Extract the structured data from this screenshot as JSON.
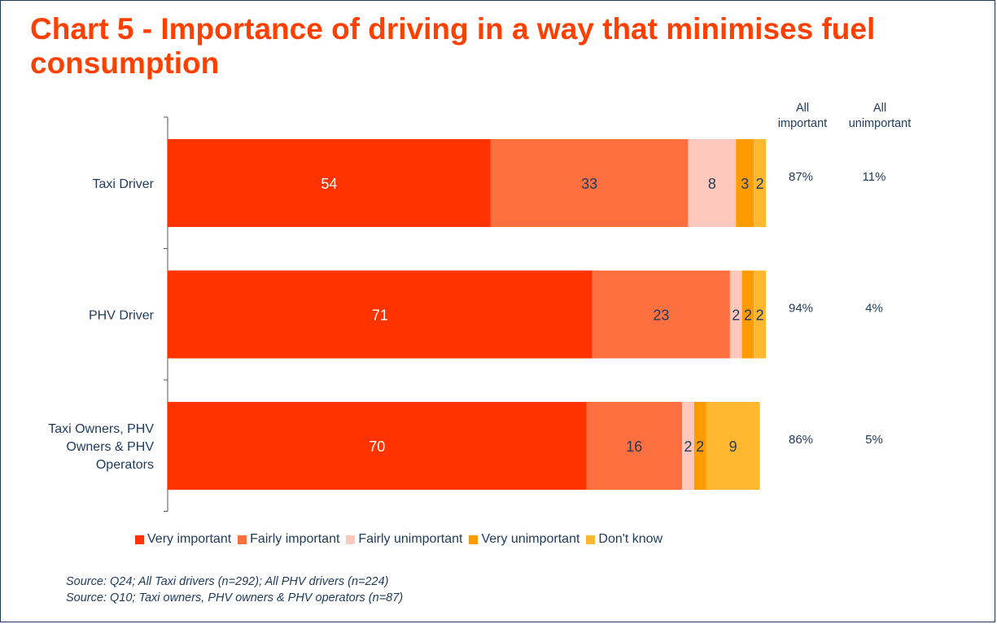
{
  "title": "Chart 5 - Importance of driving in a way that minimises fuel consumption",
  "chart_data": {
    "type": "bar",
    "orientation": "horizontal",
    "stacked": true,
    "categories": [
      "Taxi Driver",
      "PHV Driver",
      "Taxi Owners, PHV Owners & PHV Operators"
    ],
    "series": [
      {
        "name": "Very important",
        "values": [
          54,
          71,
          70
        ],
        "color": "#ff3300"
      },
      {
        "name": "Fairly important",
        "values": [
          33,
          23,
          16
        ],
        "color": "#ff7040"
      },
      {
        "name": "Fairly unimportant",
        "values": [
          8,
          2,
          2
        ],
        "color": "#ffc8bc"
      },
      {
        "name": "Very unimportant",
        "values": [
          3,
          2,
          2
        ],
        "color": "#ff9a00"
      },
      {
        "name": "Don't know",
        "values": [
          2,
          2,
          9
        ],
        "color": "#ffb830"
      }
    ],
    "summary_columns": [
      {
        "header": "All important",
        "values": [
          "87%",
          "94%",
          "86%"
        ]
      },
      {
        "header": "All unimportant",
        "values": [
          "11%",
          "4%",
          "5%"
        ]
      }
    ],
    "xlim": [
      0,
      100
    ],
    "grid": false,
    "legend_position": "bottom"
  },
  "sources": [
    "Source: Q24; All Taxi drivers (n=292); All PHV drivers (n=224)",
    "Source: Q10; Taxi owners, PHV owners & PHV operators (n=87)"
  ]
}
